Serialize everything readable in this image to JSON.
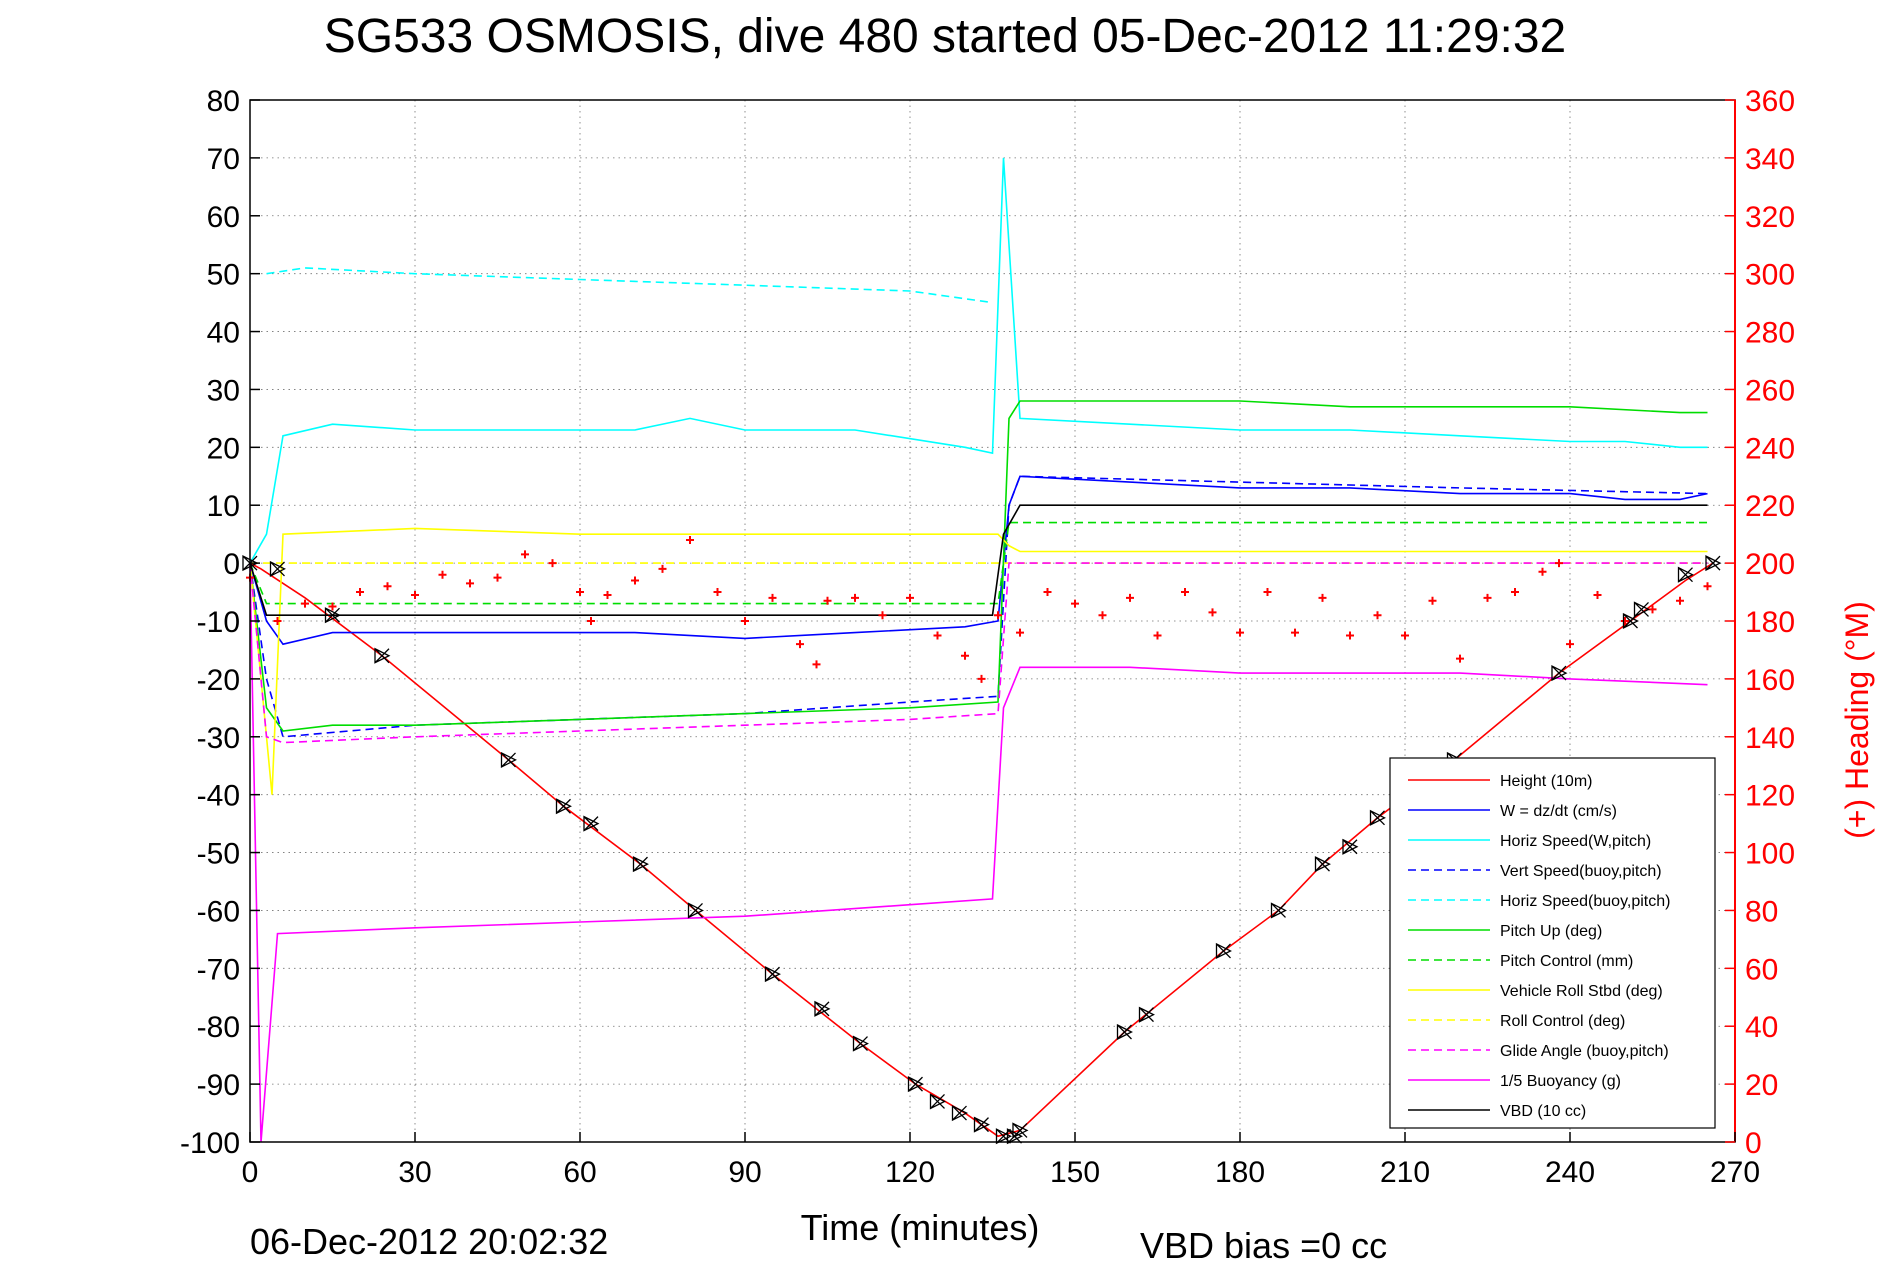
{
  "chart_data": {
    "type": "line",
    "title": "SG533 OSMOSIS, dive 480 started 05-Dec-2012 11:29:32",
    "xlabel": "Time (minutes)",
    "ylabel_right": "(+) Heading (°M)",
    "footer_left": "06-Dec-2012 20:02:32",
    "footer_right": "VBD bias =0 cc",
    "xlim": [
      0,
      270
    ],
    "ylim": [
      -100,
      80
    ],
    "ylim_right": [
      0,
      360
    ],
    "x_ticks": [
      "0",
      "30",
      "60",
      "90",
      "120",
      "150",
      "180",
      "210",
      "240",
      "270"
    ],
    "y_ticks": [
      "80",
      "70",
      "60",
      "50",
      "40",
      "30",
      "20",
      "10",
      "0",
      "-10",
      "-20",
      "-30",
      "-40",
      "-50",
      "-60",
      "-70",
      "-80",
      "-90",
      "-100"
    ],
    "y_right_ticks": [
      "360",
      "340",
      "320",
      "300",
      "280",
      "260",
      "240",
      "220",
      "200",
      "180",
      "160",
      "140",
      "120",
      "100",
      "80",
      "60",
      "40",
      "20",
      "0"
    ],
    "grid": true,
    "legend_position": "lower-right",
    "series": [
      {
        "name": "Height (10m)",
        "color": "#ff0000",
        "style": "solid",
        "x": [
          0,
          2,
          10,
          24,
          47,
          57,
          71,
          81,
          95,
          111,
          121,
          130,
          136,
          140,
          159,
          177,
          187,
          195,
          205,
          219,
          238,
          251,
          261,
          266
        ],
        "y": [
          0,
          -1,
          -6,
          -16,
          -34,
          -42,
          -52,
          -60,
          -71,
          -83,
          -90,
          -95,
          -99,
          -98,
          -81,
          -67,
          -60,
          -52,
          -44,
          -34,
          -19,
          -10,
          -3,
          0
        ]
      },
      {
        "name": "W = dz/dt (cm/s)",
        "color": "#0000ff",
        "style": "solid",
        "x": [
          0,
          3,
          6,
          15,
          30,
          50,
          70,
          90,
          110,
          130,
          136,
          138,
          140,
          160,
          180,
          200,
          220,
          240,
          250,
          260,
          265
        ],
        "y": [
          0,
          -10,
          -14,
          -12,
          -12,
          -12,
          -12,
          -13,
          -12,
          -11,
          -10,
          10,
          15,
          14,
          13,
          13,
          12,
          12,
          11,
          11,
          12
        ]
      },
      {
        "name": "Horiz Speed(W,pitch)",
        "color": "#00ffff",
        "style": "solid",
        "x": [
          0,
          3,
          6,
          15,
          30,
          50,
          70,
          80,
          90,
          110,
          130,
          135,
          137,
          140,
          160,
          180,
          200,
          220,
          240,
          250,
          260,
          265
        ],
        "y": [
          0,
          5,
          22,
          24,
          23,
          23,
          23,
          25,
          23,
          23,
          20,
          19,
          70,
          25,
          24,
          23,
          23,
          22,
          21,
          21,
          20,
          20
        ]
      },
      {
        "name": "Vert Speed(buoy,pitch)",
        "color": "#0000ff",
        "style": "dashed",
        "x": [
          0,
          3,
          6,
          30,
          60,
          90,
          120,
          136,
          138,
          140,
          180,
          220,
          265
        ],
        "y": [
          0,
          -20,
          -30,
          -28,
          -27,
          -26,
          -24,
          -23,
          10,
          15,
          14,
          13,
          12
        ]
      },
      {
        "name": "Horiz Speed(buoy,pitch)",
        "color": "#00ffff",
        "style": "dashed",
        "x": [
          3,
          10,
          30,
          60,
          90,
          120,
          135
        ],
        "y": [
          50,
          51,
          50,
          49,
          48,
          47,
          45
        ]
      },
      {
        "name": "Pitch Up (deg)",
        "color": "#00dd00",
        "style": "solid",
        "x": [
          0,
          3,
          6,
          15,
          30,
          60,
          90,
          120,
          136,
          138,
          140,
          160,
          180,
          200,
          220,
          240,
          260,
          265
        ],
        "y": [
          0,
          -25,
          -29,
          -28,
          -28,
          -27,
          -26,
          -25,
          -24,
          25,
          28,
          28,
          28,
          27,
          27,
          27,
          26,
          26
        ]
      },
      {
        "name": "Pitch Control (mm)",
        "color": "#00dd00",
        "style": "dashed",
        "x": [
          0,
          3,
          20,
          60,
          100,
          136,
          138,
          140,
          200,
          265
        ],
        "y": [
          0,
          -7,
          -7,
          -7,
          -7,
          -7,
          7,
          7,
          7,
          7
        ]
      },
      {
        "name": "Vehicle Roll Stbd (deg)",
        "color": "#ffff00",
        "style": "solid",
        "x": [
          0,
          4,
          6,
          30,
          60,
          90,
          120,
          136,
          138,
          140,
          180,
          220,
          265
        ],
        "y": [
          0,
          -40,
          5,
          6,
          5,
          5,
          5,
          5,
          3,
          2,
          2,
          2,
          2
        ]
      },
      {
        "name": "Roll Control (deg)",
        "color": "#ffff00",
        "style": "dashed",
        "x": [
          0,
          136,
          138,
          265
        ],
        "y": [
          0,
          0,
          0,
          0
        ]
      },
      {
        "name": "Glide Angle (buoy,pitch)",
        "color": "#ff00ff",
        "style": "dashed",
        "x": [
          0,
          3,
          6,
          30,
          60,
          90,
          120,
          136,
          138,
          140,
          180,
          220,
          265
        ],
        "y": [
          0,
          -30,
          -31,
          -30,
          -29,
          -28,
          -27,
          -26,
          0,
          0,
          0,
          0,
          0
        ]
      },
      {
        "name": "1/5 Buoyancy (g)",
        "color": "#ff00ff",
        "style": "solid",
        "x": [
          0,
          2,
          5,
          30,
          60,
          90,
          120,
          135,
          137,
          140,
          160,
          180,
          200,
          220,
          240,
          265
        ],
        "y": [
          0,
          -100,
          -64,
          -63,
          -62,
          -61,
          -59,
          -58,
          -25,
          -18,
          -18,
          -19,
          -19,
          -19,
          -20,
          -21
        ]
      },
      {
        "name": "VBD (10 cc)",
        "color": "#000000",
        "style": "solid",
        "x": [
          0,
          3,
          6,
          30,
          60,
          90,
          120,
          135,
          137,
          140,
          160,
          200,
          240,
          265
        ],
        "y": [
          0,
          -9,
          -9,
          -9,
          -9,
          -9,
          -9,
          -9,
          5,
          10,
          10,
          10,
          10,
          10
        ]
      }
    ],
    "heading": {
      "name": "Heading",
      "axis": "right",
      "marker": "+",
      "color": "#ff0000",
      "x": [
        0,
        5,
        10,
        15,
        20,
        25,
        30,
        35,
        40,
        45,
        50,
        55,
        60,
        62,
        65,
        70,
        75,
        80,
        85,
        90,
        95,
        100,
        103,
        105,
        110,
        115,
        120,
        125,
        130,
        133,
        136,
        140,
        145,
        150,
        155,
        160,
        165,
        170,
        175,
        180,
        185,
        190,
        195,
        200,
        205,
        210,
        215,
        220,
        225,
        230,
        235,
        238,
        240,
        245,
        250,
        255,
        260,
        265
      ],
      "y": [
        195,
        180,
        186,
        185,
        190,
        192,
        189,
        196,
        193,
        195,
        203,
        200,
        190,
        180,
        189,
        194,
        198,
        208,
        190,
        180,
        188,
        172,
        165,
        187,
        188,
        182,
        188,
        175,
        168,
        160,
        182,
        176,
        190,
        186,
        182,
        188,
        175,
        190,
        183,
        176,
        190,
        176,
        188,
        175,
        182,
        175,
        187,
        167,
        188,
        190,
        197,
        200,
        172,
        189,
        180,
        184,
        187,
        192
      ]
    },
    "markers": {
      "name": "Depth samples",
      "color": "#000000",
      "x": [
        0,
        5,
        15,
        24,
        47,
        57,
        62,
        71,
        81,
        95,
        104,
        111,
        121,
        125,
        129,
        133,
        137,
        139,
        140,
        159,
        163,
        177,
        187,
        195,
        200,
        205,
        219,
        238,
        251,
        253,
        261,
        266
      ],
      "y": [
        0,
        -1,
        -9,
        -16,
        -34,
        -42,
        -45,
        -52,
        -60,
        -71,
        -77,
        -83,
        -90,
        -93,
        -95,
        -97,
        -99,
        -99,
        -98,
        -81,
        -78,
        -67,
        -60,
        -52,
        -49,
        -44,
        -34,
        -19,
        -10,
        -8,
        -2,
        0
      ]
    }
  }
}
